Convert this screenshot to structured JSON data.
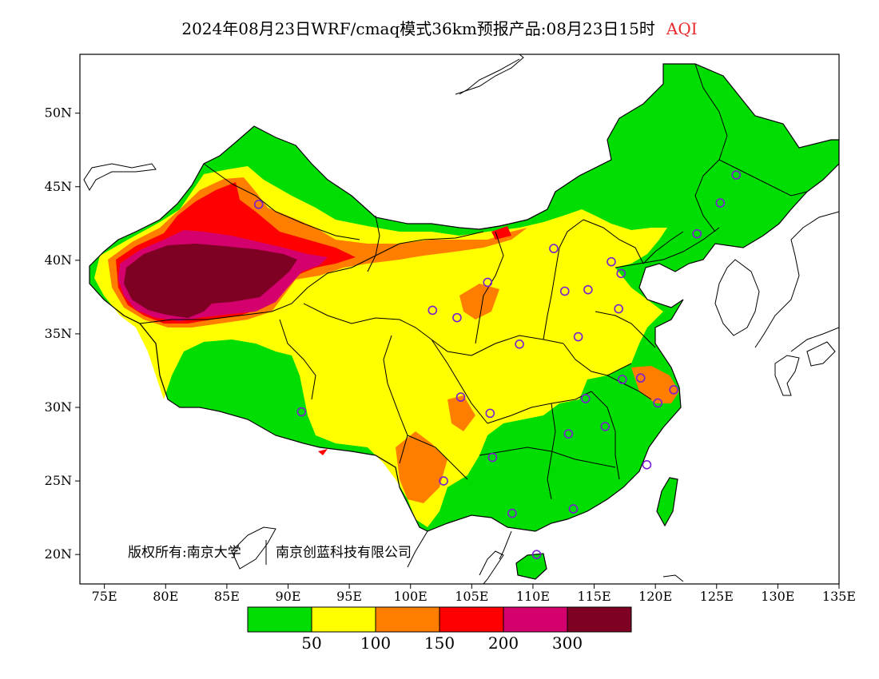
{
  "title": {
    "main": "2024年08月23日WRF/cmaq模式36km预报产品:08月23日15时",
    "variable": "AQI"
  },
  "chart_data": {
    "type": "map",
    "lon_ticks": [
      "75E",
      "80E",
      "85E",
      "90E",
      "95E",
      "100E",
      "105E",
      "110E",
      "115E",
      "120E",
      "125E",
      "130E",
      "135E"
    ],
    "lat_ticks": [
      "20N",
      "25N",
      "30N",
      "35N",
      "40N",
      "45N",
      "50N"
    ],
    "lon_range": [
      73,
      135
    ],
    "lat_range": [
      18,
      54
    ],
    "colorbar": {
      "labels": [
        "50",
        "100",
        "150",
        "200",
        "300"
      ],
      "colors": [
        "#00dd00",
        "#ffff00",
        "#ff7e00",
        "#ff0000",
        "#d4006e",
        "#7e0023"
      ]
    },
    "stations_lonlat": [
      [
        87.6,
        43.8
      ],
      [
        91.1,
        29.7
      ],
      [
        101.8,
        36.6
      ],
      [
        103.8,
        36.1
      ],
      [
        106.3,
        38.5
      ],
      [
        111.7,
        40.8
      ],
      [
        104.1,
        30.7
      ],
      [
        106.5,
        29.6
      ],
      [
        106.7,
        26.6
      ],
      [
        102.7,
        25.0
      ],
      [
        108.3,
        22.8
      ],
      [
        110.3,
        20.0
      ],
      [
        113.3,
        23.1
      ],
      [
        112.9,
        28.2
      ],
      [
        115.9,
        28.7
      ],
      [
        114.3,
        30.6
      ],
      [
        117.3,
        31.9
      ],
      [
        118.8,
        32.0
      ],
      [
        120.2,
        30.3
      ],
      [
        121.5,
        31.2
      ],
      [
        119.3,
        26.1
      ],
      [
        108.9,
        34.3
      ],
      [
        112.6,
        37.9
      ],
      [
        113.7,
        34.8
      ],
      [
        114.5,
        38.0
      ],
      [
        117.0,
        36.7
      ],
      [
        117.2,
        39.1
      ],
      [
        116.4,
        39.9
      ],
      [
        123.4,
        41.8
      ],
      [
        125.3,
        43.9
      ],
      [
        126.6,
        45.8
      ]
    ]
  },
  "copyright": {
    "part1": "版权所有:南京大学",
    "part2": "南京创蓝科技有限公司"
  }
}
